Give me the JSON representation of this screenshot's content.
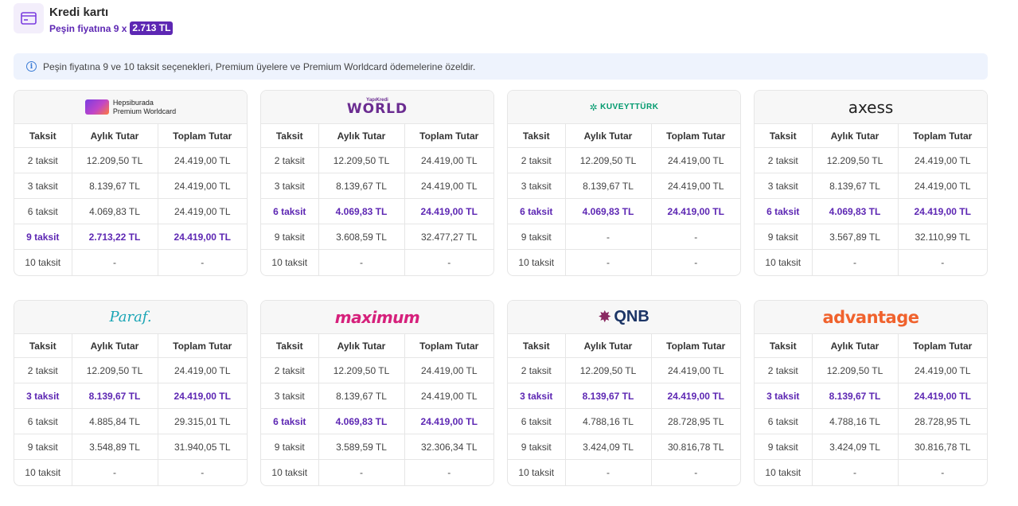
{
  "header": {
    "title": "Kredi kartı",
    "subtitle_prefix": "Peşin fiyatına 9 x",
    "subtitle_badge": "2.713 TL",
    "icon": "credit-card-icon"
  },
  "info": {
    "icon": "info-icon",
    "text": "Peşin fiyatına 9 ve 10 taksit seçenekleri, Premium üyelere ve Premium Worldcard ödemelerine özeldir."
  },
  "columns": [
    "Taksit",
    "Aylık Tutar",
    "Toplam Tutar"
  ],
  "banks": [
    {
      "logo_lines": [
        "Hepsiburada",
        "Premium Worldcard"
      ],
      "rows": [
        [
          "2 taksit",
          "12.209,50 TL",
          "24.419,00 TL"
        ],
        [
          "3 taksit",
          "8.139,67 TL",
          "24.419,00 TL"
        ],
        [
          "6 taksit",
          "4.069,83 TL",
          "24.419,00 TL"
        ],
        [
          "9 taksit",
          "2.713,22 TL",
          "24.419,00 TL"
        ],
        [
          "10 taksit",
          "-",
          "-"
        ]
      ],
      "highlight_row": 3
    },
    {
      "logo_small": "YapıKredi",
      "logo_text": "WORLD",
      "rows": [
        [
          "2 taksit",
          "12.209,50 TL",
          "24.419,00 TL"
        ],
        [
          "3 taksit",
          "8.139,67 TL",
          "24.419,00 TL"
        ],
        [
          "6 taksit",
          "4.069,83 TL",
          "24.419,00 TL"
        ],
        [
          "9 taksit",
          "3.608,59 TL",
          "32.477,27 TL"
        ],
        [
          "10 taksit",
          "-",
          "-"
        ]
      ],
      "highlight_row": 2
    },
    {
      "logo_text": "KUVEYTTÜRK",
      "rows": [
        [
          "2 taksit",
          "12.209,50 TL",
          "24.419,00 TL"
        ],
        [
          "3 taksit",
          "8.139,67 TL",
          "24.419,00 TL"
        ],
        [
          "6 taksit",
          "4.069,83 TL",
          "24.419,00 TL"
        ],
        [
          "9 taksit",
          "-",
          "-"
        ],
        [
          "10 taksit",
          "-",
          "-"
        ]
      ],
      "highlight_row": 2
    },
    {
      "logo_text": "axess",
      "rows": [
        [
          "2 taksit",
          "12.209,50 TL",
          "24.419,00 TL"
        ],
        [
          "3 taksit",
          "8.139,67 TL",
          "24.419,00 TL"
        ],
        [
          "6 taksit",
          "4.069,83 TL",
          "24.419,00 TL"
        ],
        [
          "9 taksit",
          "3.567,89 TL",
          "32.110,99 TL"
        ],
        [
          "10 taksit",
          "-",
          "-"
        ]
      ],
      "highlight_row": 2
    },
    {
      "logo_text": "Paraf.",
      "rows": [
        [
          "2 taksit",
          "12.209,50 TL",
          "24.419,00 TL"
        ],
        [
          "3 taksit",
          "8.139,67 TL",
          "24.419,00 TL"
        ],
        [
          "6 taksit",
          "4.885,84 TL",
          "29.315,01 TL"
        ],
        [
          "9 taksit",
          "3.548,89 TL",
          "31.940,05 TL"
        ],
        [
          "10 taksit",
          "-",
          "-"
        ]
      ],
      "highlight_row": 1
    },
    {
      "logo_text": "maximum",
      "rows": [
        [
          "2 taksit",
          "12.209,50 TL",
          "24.419,00 TL"
        ],
        [
          "3 taksit",
          "8.139,67 TL",
          "24.419,00 TL"
        ],
        [
          "6 taksit",
          "4.069,83 TL",
          "24.419,00 TL"
        ],
        [
          "9 taksit",
          "3.589,59 TL",
          "32.306,34 TL"
        ],
        [
          "10 taksit",
          "-",
          "-"
        ]
      ],
      "highlight_row": 2
    },
    {
      "logo_text": "QNB",
      "rows": [
        [
          "2 taksit",
          "12.209,50 TL",
          "24.419,00 TL"
        ],
        [
          "3 taksit",
          "8.139,67 TL",
          "24.419,00 TL"
        ],
        [
          "6 taksit",
          "4.788,16 TL",
          "28.728,95 TL"
        ],
        [
          "9 taksit",
          "3.424,09 TL",
          "30.816,78 TL"
        ],
        [
          "10 taksit",
          "-",
          "-"
        ]
      ],
      "highlight_row": 1
    },
    {
      "logo_text": "advantage",
      "rows": [
        [
          "2 taksit",
          "12.209,50 TL",
          "24.419,00 TL"
        ],
        [
          "3 taksit",
          "8.139,67 TL",
          "24.419,00 TL"
        ],
        [
          "6 taksit",
          "4.788,16 TL",
          "28.728,95 TL"
        ],
        [
          "9 taksit",
          "3.424,09 TL",
          "30.816,78 TL"
        ],
        [
          "10 taksit",
          "-",
          "-"
        ]
      ],
      "highlight_row": 1
    }
  ],
  "colors": {
    "accent": "#5d27b3",
    "info_bg": "#eef3fd",
    "border": "#e6e6e6"
  }
}
